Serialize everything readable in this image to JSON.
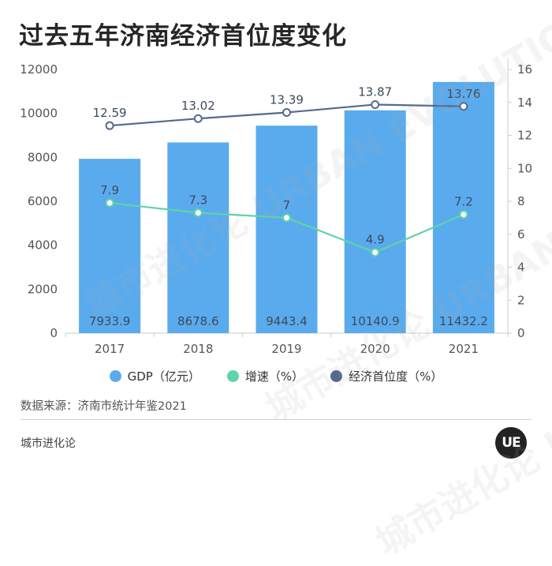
{
  "title": "过去五年济南经济首位度变化",
  "chart_data": {
    "type": "bar",
    "categories": [
      "2017",
      "2018",
      "2019",
      "2020",
      "2021"
    ],
    "series": [
      {
        "name": "GDP（亿元）",
        "type": "bar",
        "axis": "left",
        "values": [
          7933.9,
          8678.6,
          9443.4,
          10140.9,
          11432.2
        ],
        "color": "#5aabee"
      },
      {
        "name": "增速（%）",
        "type": "line",
        "axis": "right",
        "values": [
          7.9,
          7.3,
          7,
          4.9,
          7.2
        ],
        "color": "#5fd4a6"
      },
      {
        "name": "经济首位度（%）",
        "type": "line",
        "axis": "right",
        "values": [
          12.59,
          13.02,
          13.39,
          13.87,
          13.76
        ],
        "color": "#56698e"
      }
    ],
    "y_left": {
      "min": 0,
      "max": 12000,
      "ticks": [
        "0",
        "2000",
        "4000",
        "6000",
        "8000",
        "10000",
        "12000"
      ]
    },
    "y_right": {
      "min": 0,
      "max": 16,
      "ticks": [
        "0",
        "2",
        "4",
        "6",
        "8",
        "10",
        "12",
        "14",
        "16"
      ]
    },
    "grid": false,
    "legend_position": "bottom"
  },
  "source": "数据来源：济南市统计年鉴2021",
  "footer": "城市进化论",
  "logo": "UE",
  "watermark": "城市进化论 URBAN EVOLUTION"
}
